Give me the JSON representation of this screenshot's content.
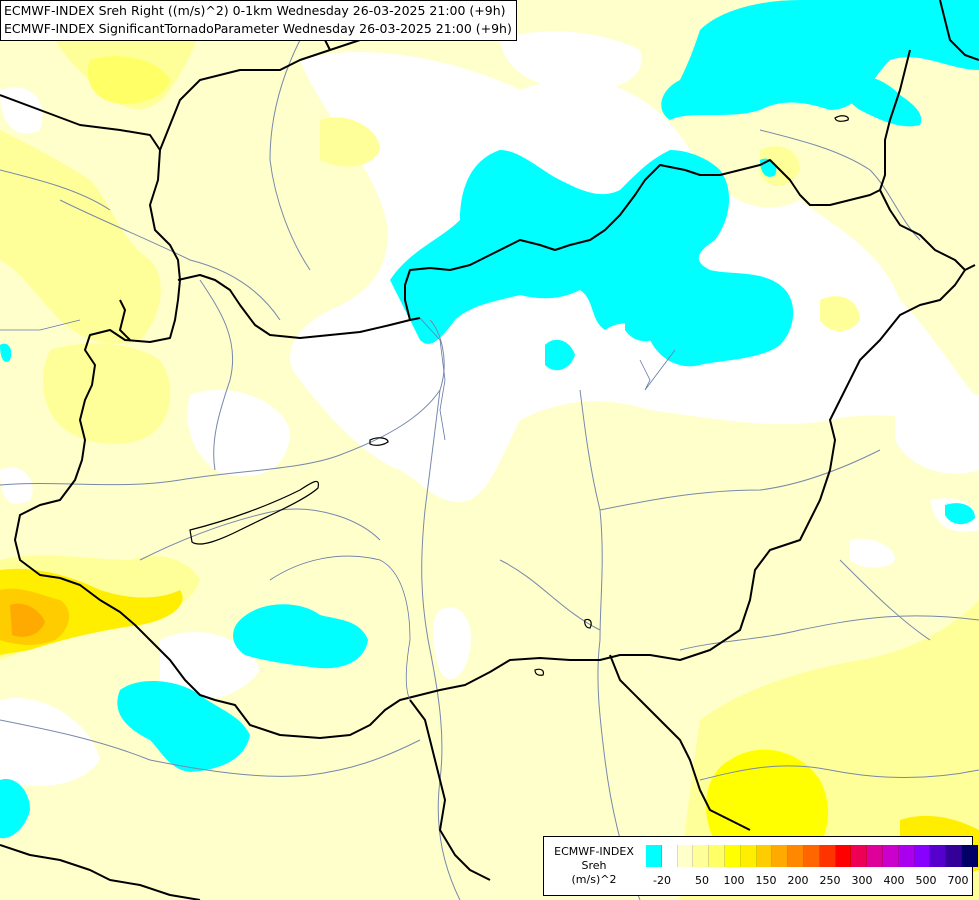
{
  "header": {
    "line1": "ECMWF-INDEX Sreh Right ((m/s)^2) 0-1km Wednesday 26-03-2025 21:00 (+9h)",
    "line2": "ECMWF-INDEX SignificantTornadoParameter Wednesday 26-03-2025 21:00 (+9h)"
  },
  "legend": {
    "title_lines": [
      "ECMWF-INDEX",
      "Sreh",
      "(m/s)^2"
    ],
    "colors": [
      "#00ffff",
      "#ffffff",
      "#ffffcc",
      "#ffff99",
      "#ffff66",
      "#ffff00",
      "#ffee00",
      "#ffcc00",
      "#ffaa00",
      "#ff8800",
      "#ff6600",
      "#ff3300",
      "#ff0000",
      "#ee0055",
      "#dd0099",
      "#cc00cc",
      "#aa00ee",
      "#8800ff",
      "#5500cc",
      "#330099",
      "#000066"
    ],
    "ticks": [
      "-20",
      "50",
      "100",
      "150",
      "200",
      "250",
      "300",
      "400",
      "500",
      "700"
    ]
  },
  "colors": {
    "background": "#ffffcc",
    "neutral": "#ffffff",
    "negative": "#00ffff",
    "light_yellow": "#ffff99",
    "yellow": "#ffff00",
    "gold": "#ffcc00",
    "orange": "#ffaa00",
    "border": "#000000",
    "river": "#7788aa"
  }
}
